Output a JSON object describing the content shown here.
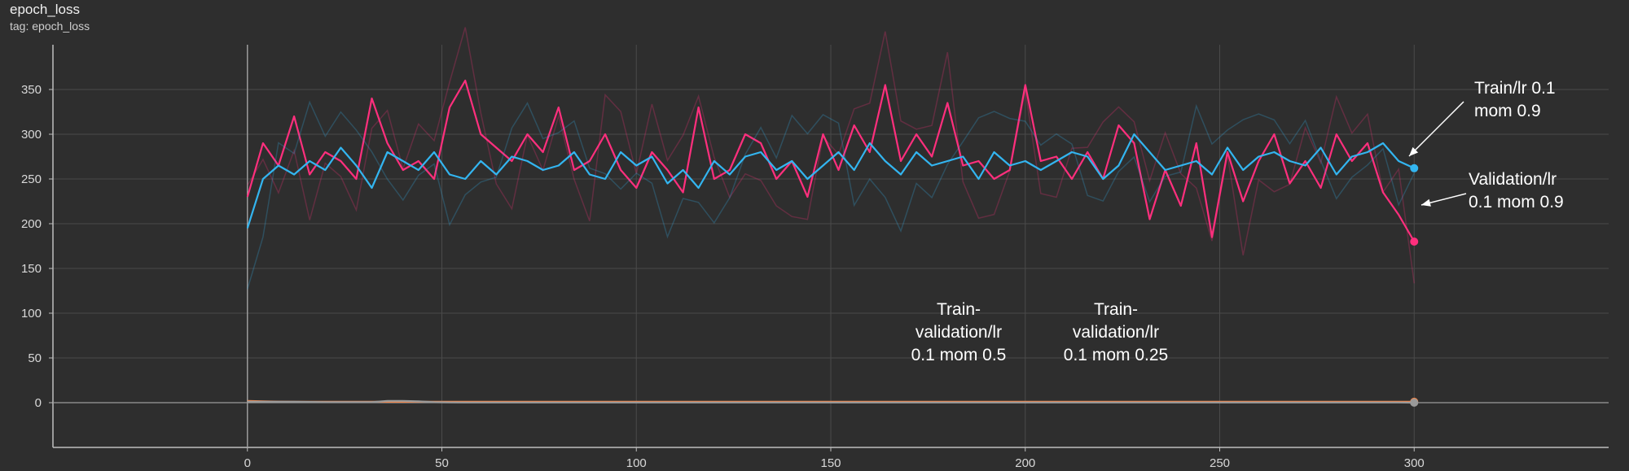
{
  "panel": {
    "title": "epoch_loss",
    "subtitle": "tag: epoch_loss"
  },
  "colors": {
    "background": "#2e2e2e",
    "grid": "#4a4a4a",
    "axis": "#bdbdbd",
    "train_09": "#33b5f0",
    "validation_09": "#ff2f7d",
    "train_05": "#f0854a",
    "train_025": "#9a9a9a"
  },
  "chart_data": {
    "type": "line",
    "xlim": [
      -50,
      350
    ],
    "ylim": [
      -50,
      400
    ],
    "x_ticks": [
      0,
      50,
      100,
      150,
      200,
      250,
      300
    ],
    "y_ticks": [
      0,
      50,
      100,
      150,
      200,
      250,
      300,
      350
    ],
    "grid": true,
    "smoothed": true,
    "x": [
      0,
      4,
      8,
      12,
      16,
      20,
      24,
      28,
      32,
      36,
      40,
      44,
      48,
      52,
      56,
      60,
      64,
      68,
      72,
      76,
      80,
      84,
      88,
      92,
      96,
      100,
      104,
      108,
      112,
      116,
      120,
      124,
      128,
      132,
      136,
      140,
      144,
      148,
      152,
      156,
      160,
      164,
      168,
      172,
      176,
      180,
      184,
      188,
      192,
      196,
      200,
      204,
      208,
      212,
      216,
      220,
      224,
      228,
      232,
      236,
      240,
      244,
      248,
      252,
      256,
      260,
      264,
      268,
      272,
      276,
      280,
      284,
      288,
      292,
      296,
      300
    ],
    "series": [
      {
        "key": "validation_09",
        "values": [
          230,
          290,
          265,
          320,
          255,
          280,
          270,
          250,
          340,
          290,
          260,
          270,
          250,
          330,
          360,
          300,
          285,
          270,
          300,
          280,
          330,
          260,
          270,
          300,
          260,
          240,
          280,
          260,
          235,
          330,
          250,
          260,
          300,
          290,
          250,
          270,
          230,
          300,
          260,
          310,
          280,
          355,
          270,
          300,
          275,
          335,
          265,
          270,
          250,
          260,
          355,
          270,
          275,
          250,
          280,
          250,
          310,
          290,
          205,
          260,
          220,
          290,
          185,
          280,
          225,
          270,
          300,
          245,
          270,
          240,
          300,
          270,
          290,
          235,
          210,
          180
        ]
      },
      {
        "key": "train_09",
        "values": [
          195,
          250,
          265,
          255,
          270,
          260,
          285,
          265,
          240,
          280,
          270,
          260,
          280,
          255,
          250,
          270,
          255,
          275,
          270,
          260,
          265,
          280,
          255,
          250,
          280,
          265,
          275,
          245,
          260,
          240,
          270,
          255,
          275,
          280,
          260,
          270,
          250,
          265,
          280,
          260,
          290,
          270,
          255,
          280,
          265,
          270,
          275,
          250,
          280,
          265,
          270,
          260,
          270,
          280,
          275,
          250,
          265,
          300,
          280,
          260,
          265,
          270,
          255,
          285,
          260,
          275,
          280,
          270,
          265,
          285,
          255,
          275,
          280,
          290,
          270,
          262
        ]
      },
      {
        "key": "train_05",
        "values": [
          2,
          1.5,
          1.2,
          1,
          1,
          1,
          1,
          1,
          1,
          1,
          1,
          1,
          1,
          1,
          1,
          1,
          1,
          1,
          1,
          1,
          1,
          1,
          1,
          1,
          1,
          1,
          1,
          1,
          1,
          1,
          1,
          1,
          1,
          1,
          1,
          1,
          1,
          1,
          1,
          1,
          1,
          1,
          1,
          1,
          1,
          1,
          1,
          1,
          1,
          1,
          1,
          1,
          1,
          1,
          1,
          1,
          1,
          1,
          1,
          1,
          1,
          1,
          1,
          1,
          1,
          1,
          1,
          1,
          1,
          1,
          1,
          1,
          1,
          1,
          1,
          1
        ]
      },
      {
        "key": "train_025",
        "values": [
          1,
          1,
          1,
          1,
          0.8,
          0.6,
          0.5,
          0.5,
          0.5,
          2,
          2,
          1.5,
          0.5,
          0.3,
          0.2,
          0.2,
          0.2,
          0.2,
          0.2,
          0.2,
          0.2,
          0.2,
          0.2,
          0.2,
          0.2,
          0.2,
          0.2,
          0.2,
          0.2,
          0.2,
          0.2,
          0.2,
          0.2,
          0.2,
          0.2,
          0.2,
          0.2,
          0.2,
          0.2,
          0.2,
          0.2,
          0.2,
          0.2,
          0.2,
          0.2,
          0.2,
          0.2,
          0.2,
          0.2,
          0.2,
          0.2,
          0.2,
          0.2,
          0.2,
          0.2,
          0.2,
          0.2,
          0.2,
          0.2,
          0.2,
          0.2,
          0.2,
          0.2,
          0.2,
          0.2,
          0.2,
          0.2,
          0.2,
          0.2,
          0.2,
          0.2,
          0.2,
          0.2,
          0.2,
          0.2,
          0
        ]
      }
    ],
    "annotations": [
      {
        "key": "train_09",
        "lines": [
          "Train/lr 0.1",
          "mom 0.9"
        ],
        "arrow": true
      },
      {
        "key": "validation_09",
        "lines": [
          "Validation/lr",
          "0.1 mom 0.9"
        ],
        "arrow": true
      },
      {
        "key": "train_05",
        "lines": [
          "Train-",
          "validation/lr",
          "0.1 mom 0.5"
        ],
        "arrow": false
      },
      {
        "key": "train_025",
        "lines": [
          "Train-",
          "validation/lr",
          "0.1 mom 0.25"
        ],
        "arrow": false
      }
    ]
  }
}
